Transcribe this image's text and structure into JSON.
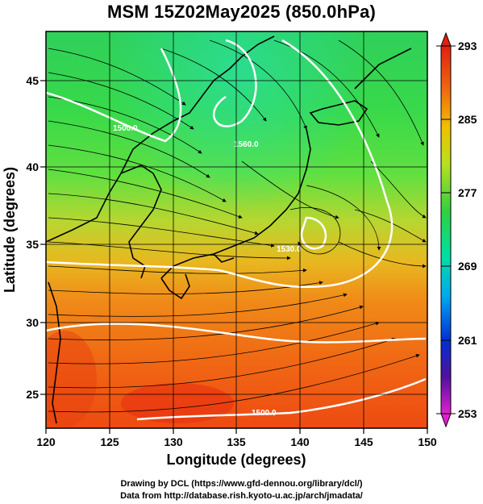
{
  "title": "MSM 15Z02May2025 (850.0hPa)",
  "axes": {
    "xlabel": "Longitude (degrees)",
    "ylabel": "Latitude  (degrees)",
    "xlim": [
      120,
      150
    ],
    "ylim": [
      22.4,
      47.6
    ],
    "xticks": [
      "120",
      "125",
      "130",
      "135",
      "140",
      "145",
      "150"
    ],
    "yticks": [
      "25",
      "30",
      "35",
      "40",
      "45"
    ],
    "grid": true
  },
  "colorbar": {
    "labels": [
      "293",
      "285",
      "277",
      "269",
      "261",
      "253"
    ],
    "range": [
      253,
      293
    ],
    "colors": [
      "#d020d0",
      "#3010b0",
      "#0050f0",
      "#00b0f0",
      "#00e0a0",
      "#20d040",
      "#b0e020",
      "#f0c000",
      "#f06000",
      "#e02000"
    ]
  },
  "contour_labels": [
    "1500.0",
    "1560.0",
    "1500.0",
    "1530.0"
  ],
  "credits": {
    "line1": "Drawing by DCL (https://www.gfd-dennou.org/library/dcl/)",
    "line2": "Data from http://database.rish.kyoto-u.ac.jp/arch/jmadata/"
  }
}
